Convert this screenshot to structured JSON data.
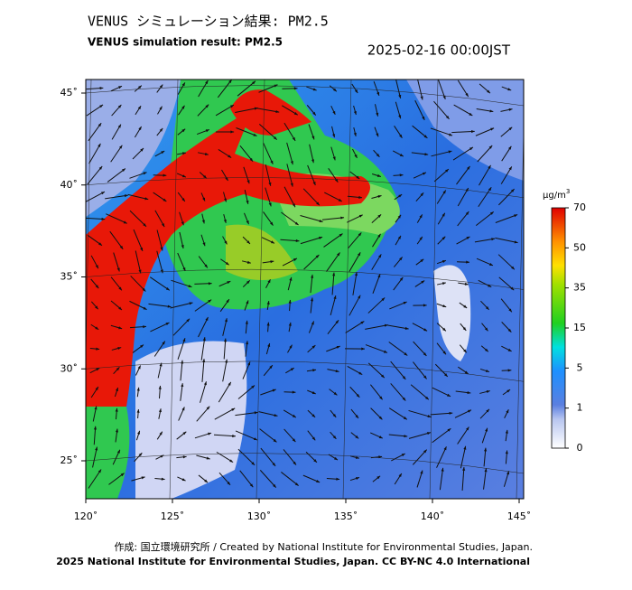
{
  "header": {
    "title_jp": "VENUS シミュレーション結果: PM2.5",
    "title_en": "VENUS simulation result: PM2.5",
    "datetime": "2025-02-16 00:00JST"
  },
  "map": {
    "lon_ticks": [
      {
        "value": 120,
        "label": "120˚"
      },
      {
        "value": 125,
        "label": "125˚"
      },
      {
        "value": 130,
        "label": "130˚"
      },
      {
        "value": 135,
        "label": "135˚"
      },
      {
        "value": 140,
        "label": "140˚"
      },
      {
        "value": 145,
        "label": "145˚"
      }
    ],
    "lat_ticks": [
      {
        "value": 25,
        "label": "25˚"
      },
      {
        "value": 30,
        "label": "30˚"
      },
      {
        "value": 35,
        "label": "35˚"
      },
      {
        "value": 40,
        "label": "40˚"
      },
      {
        "value": 45,
        "label": "45˚"
      }
    ]
  },
  "colorbar": {
    "unit_base": "µg/m",
    "unit_sup": "3",
    "ticks": [
      0,
      1,
      5,
      15,
      35,
      50,
      70
    ]
  },
  "footer": {
    "credit": "作成: 国立環境研究所 / Created by National Institute for Environmental Studies, Japan.",
    "copyright": "2025 National Institute for Environmental Studies, Japan. CC BY-NC 4.0 International"
  }
}
